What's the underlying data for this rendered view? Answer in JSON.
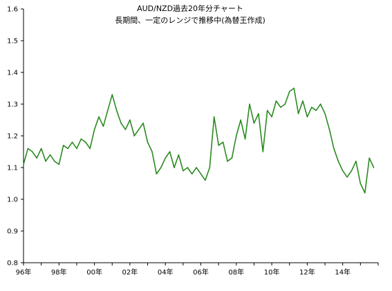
{
  "chart_data": {
    "type": "line",
    "title": "AUD/NZD過去20年分チャート",
    "subtitle": "長期間、一定のレンジで推移中(為替王作成)",
    "xlabel": "",
    "ylabel": "",
    "x_start_year": 1996,
    "x_end_year": 2016,
    "ylim": [
      0.8,
      1.6
    ],
    "y_ticks": [
      "0.8",
      "0.9",
      "1.0",
      "1.1",
      "1.2",
      "1.3",
      "1.4",
      "1.5",
      "1.6"
    ],
    "x_ticks": [
      "96年",
      "98年",
      "00年",
      "02年",
      "04年",
      "06年",
      "08年",
      "10年",
      "12年",
      "14年"
    ],
    "grid": false,
    "legend": "none",
    "line_color": "#2a8a1f",
    "series": [
      {
        "x": [
          1996.0,
          1996.25,
          1996.5,
          1996.75,
          1997.0,
          1997.25,
          1997.5,
          1997.75,
          1998.0,
          1998.25,
          1998.5,
          1998.75,
          1999.0,
          1999.25,
          1999.5,
          1999.75,
          2000.0,
          2000.25,
          2000.5,
          2000.75,
          2001.0,
          2001.25,
          2001.5,
          2001.75,
          2002.0,
          2002.25,
          2002.5,
          2002.75,
          2003.0,
          2003.25,
          2003.5,
          2003.75,
          2004.0,
          2004.25,
          2004.5,
          2004.75,
          2005.0,
          2005.25,
          2005.5,
          2005.75,
          2006.0,
          2006.25,
          2006.5,
          2006.75,
          2007.0,
          2007.25,
          2007.5,
          2007.75,
          2008.0,
          2008.25,
          2008.5,
          2008.75,
          2009.0,
          2009.25,
          2009.5,
          2009.75,
          2010.0,
          2010.25,
          2010.5,
          2010.75,
          2011.0,
          2011.25,
          2011.5,
          2011.75,
          2012.0,
          2012.25,
          2012.5,
          2012.75,
          2013.0,
          2013.25,
          2013.5,
          2013.75,
          2014.0,
          2014.25,
          2014.5,
          2014.75,
          2015.0,
          2015.25,
          2015.5,
          2015.75
        ],
        "values": [
          1.11,
          1.16,
          1.15,
          1.13,
          1.16,
          1.12,
          1.14,
          1.12,
          1.11,
          1.17,
          1.16,
          1.18,
          1.16,
          1.19,
          1.18,
          1.16,
          1.22,
          1.26,
          1.23,
          1.28,
          1.33,
          1.28,
          1.24,
          1.22,
          1.25,
          1.2,
          1.22,
          1.24,
          1.18,
          1.15,
          1.08,
          1.1,
          1.13,
          1.15,
          1.1,
          1.14,
          1.09,
          1.1,
          1.08,
          1.1,
          1.08,
          1.06,
          1.1,
          1.26,
          1.17,
          1.18,
          1.12,
          1.13,
          1.2,
          1.25,
          1.19,
          1.3,
          1.24,
          1.27,
          1.15,
          1.28,
          1.26,
          1.31,
          1.29,
          1.3,
          1.34,
          1.35,
          1.27,
          1.31,
          1.26,
          1.29,
          1.28,
          1.3,
          1.27,
          1.22,
          1.16,
          1.12,
          1.09,
          1.07,
          1.09,
          1.12,
          1.05,
          1.02,
          1.13,
          1.1
        ]
      }
    ]
  }
}
